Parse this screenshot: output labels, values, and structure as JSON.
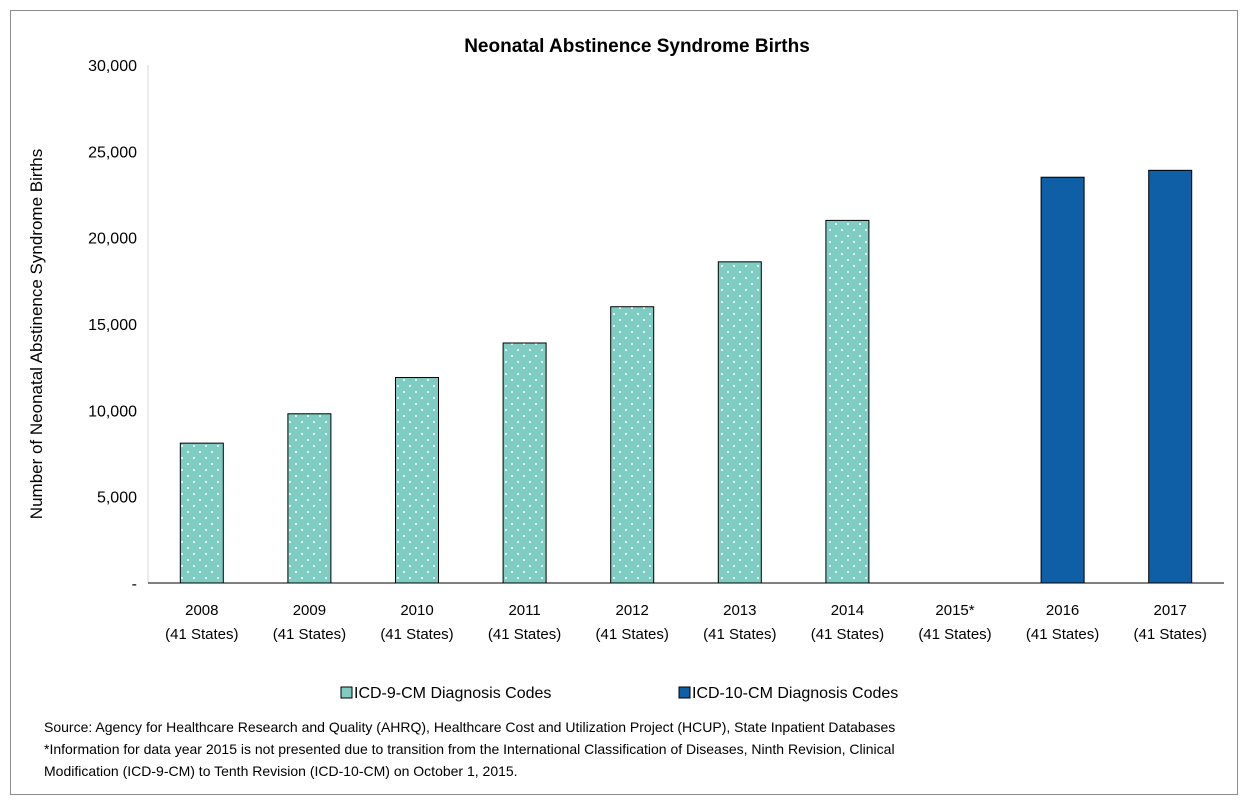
{
  "chart_data": {
    "type": "bar",
    "title": "Neonatal Abstinence Syndrome Births",
    "ylabel": "Number of Neonatal Abstinence Syndrome Births",
    "xlabel": "",
    "ylim": [
      0,
      30000
    ],
    "y_ticks": [
      {
        "value": 0,
        "label": "-"
      },
      {
        "value": 5000,
        "label": "5,000"
      },
      {
        "value": 10000,
        "label": "10,000"
      },
      {
        "value": 15000,
        "label": "15,000"
      },
      {
        "value": 20000,
        "label": "20,000"
      },
      {
        "value": 25000,
        "label": "25,000"
      },
      {
        "value": 30000,
        "label": "30,000"
      }
    ],
    "categories": [
      {
        "year": "2008",
        "states": "(41 States)"
      },
      {
        "year": "2009",
        "states": "(41 States)"
      },
      {
        "year": "2010",
        "states": "(41 States)"
      },
      {
        "year": "2011",
        "states": "(41 States)"
      },
      {
        "year": "2012",
        "states": "(41 States)"
      },
      {
        "year": "2013",
        "states": "(41 States)"
      },
      {
        "year": "2014",
        "states": "(41 States)"
      },
      {
        "year": "2015*",
        "states": "(41 States)"
      },
      {
        "year": "2016",
        "states": "(41 States)"
      },
      {
        "year": "2017",
        "states": "(41 States)"
      }
    ],
    "series": [
      {
        "name": "ICD-9-CM Diagnosis Codes",
        "color": "#7fcdc2",
        "pattern": "dotted",
        "values": [
          8100,
          9800,
          11900,
          13900,
          16000,
          18600,
          21000,
          null,
          null,
          null
        ]
      },
      {
        "name": "ICD-10-CM Diagnosis Codes",
        "color": "#0e5fa6",
        "pattern": "solid",
        "values": [
          null,
          null,
          null,
          null,
          null,
          null,
          null,
          null,
          23500,
          23900
        ]
      }
    ],
    "grid": false,
    "legend_position": "bottom"
  },
  "notes": {
    "source": "Source: Agency for Healthcare Research and Quality (AHRQ), Healthcare Cost and Utilization Project (HCUP), State Inpatient Databases",
    "footnote_line1": "*Information for data year 2015 is not presented due to transition from the International Classification of Diseases, Ninth Revision, Clinical",
    "footnote_line2": "Modification (ICD-9-CM) to Tenth Revision (ICD-10-CM) on October 1, 2015."
  }
}
